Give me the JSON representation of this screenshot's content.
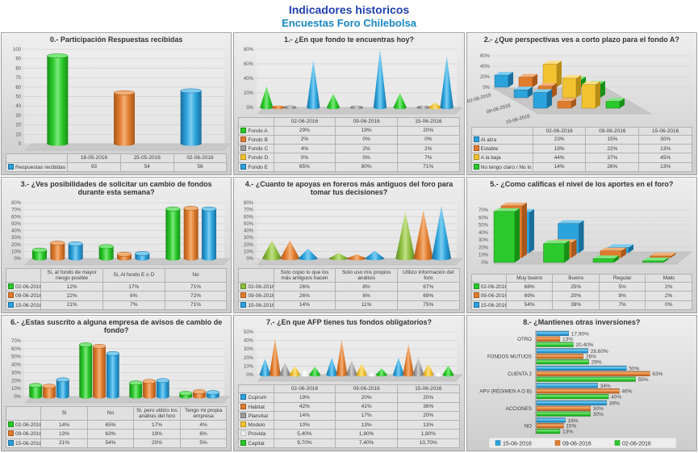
{
  "header": {
    "title1": "Indicadores historicos",
    "title2": "Encuestas Foro Chilebolsa"
  },
  "colors": {
    "green": {
      "base": "#2bc92b",
      "light": "#7ce87c",
      "dark": "#179117",
      "darker": "#0e6e0e"
    },
    "orange": {
      "base": "#e07c2e",
      "light": "#f3b077",
      "dark": "#a8581c",
      "darker": "#8a4716"
    },
    "blue": {
      "base": "#2ba3dc",
      "light": "#7ecdf0",
      "dark": "#1a6f9d",
      "darker": "#145a81"
    },
    "yellow": {
      "base": "#f2c230",
      "light": "#fadf85",
      "dark": "#b98e18",
      "darker": "#977311"
    },
    "gray": {
      "base": "#9c9c9c",
      "light": "#d0d0d0",
      "dark": "#6e6e6e",
      "darker": "#595959"
    },
    "olive": {
      "base": "#8fbe3f",
      "light": "#c2e187",
      "dark": "#5f8a24",
      "darker": "#4c701c"
    },
    "white": {
      "base": "#efefef",
      "light": "#ffffff",
      "dark": "#bdbdbd",
      "darker": "#a0a0a0"
    },
    "title1": "#1f3fae",
    "title2": "#1886c3"
  },
  "chart_data": [
    {
      "type": "bar",
      "style": "cylinder",
      "table": true,
      "title": "0.- Participación Respuestas recibidas",
      "categories": [
        "18-05-2016",
        "25-05-2016",
        "02-06-2016"
      ],
      "series": [
        {
          "name": "Respuestas recibidas",
          "color": "blue",
          "point_colors": [
            "green",
            "orange",
            "blue"
          ],
          "values": [
            93,
            54,
            56
          ],
          "labels": [
            "93",
            "54",
            "56"
          ]
        }
      ],
      "ylim": [
        0,
        100
      ],
      "ystep": 10,
      "yformat": "num"
    },
    {
      "type": "bar",
      "style": "cone",
      "table": true,
      "title": "1.- ¿En que fondo te encuentras hoy?",
      "categories": [
        "02-06-2016",
        "09-06-2016",
        "15-06-2016"
      ],
      "series": [
        {
          "name": "Fondo A",
          "color": "green",
          "values": [
            29,
            19,
            20
          ],
          "labels": [
            "29%",
            "19%",
            "20%"
          ]
        },
        {
          "name": "Fondo B",
          "color": "orange",
          "values": [
            2,
            0,
            0
          ],
          "labels": [
            "2%",
            "0%",
            "0%"
          ]
        },
        {
          "name": "Fondo C",
          "color": "gray",
          "values": [
            4,
            2,
            2
          ],
          "labels": [
            "4%",
            "2%",
            "2%"
          ]
        },
        {
          "name": "Fondo D",
          "color": "yellow",
          "values": [
            0,
            0,
            7
          ],
          "labels": [
            "0%",
            "0%",
            "7%"
          ]
        },
        {
          "name": "Fondo E",
          "color": "blue",
          "values": [
            65,
            80,
            71
          ],
          "labels": [
            "65%",
            "80%",
            "71%"
          ]
        }
      ],
      "ylim": [
        0,
        80
      ],
      "ystep": 20,
      "yformat": "pct"
    },
    {
      "type": "bar",
      "style": "box3d-cat",
      "table": true,
      "title": "2.- ¿Que perspectivas ves a corto plazo para el fondo A?",
      "categories": [
        "02-06-2016",
        "09-06-2016",
        "15-06-2016"
      ],
      "series": [
        {
          "name": "Al alza",
          "color": "blue",
          "values": [
            23,
            15,
            30
          ],
          "labels": [
            "23%",
            "15%",
            "30%"
          ]
        },
        {
          "name": "Estable",
          "color": "orange",
          "values": [
            19,
            22,
            13
          ],
          "labels": [
            "19%",
            "22%",
            "13%"
          ]
        },
        {
          "name": "A la baja",
          "color": "yellow",
          "values": [
            44,
            37,
            45
          ],
          "labels": [
            "44%",
            "37%",
            "45%"
          ]
        },
        {
          "name": "No tengo claro / No lo se",
          "color": "green",
          "values": [
            14,
            26,
            13
          ],
          "labels": [
            "14%",
            "26%",
            "13%"
          ]
        }
      ],
      "ylim": [
        0,
        60
      ],
      "ystep": 20,
      "yformat": "pct"
    },
    {
      "type": "bar",
      "style": "cylinder",
      "table": true,
      "title": "3.- ¿Ves posibilidades de solicitar un cambio de fondos durante esta semana?",
      "categories": [
        "Si, al fondo de mayor riesgo posible",
        "Si, Al fondo E o D",
        "No"
      ],
      "series": [
        {
          "name": "02-06-2016",
          "color": "green",
          "values": [
            12,
            17,
            71
          ],
          "labels": [
            "12%",
            "17%",
            "71%"
          ]
        },
        {
          "name": "09-06-2016",
          "color": "orange",
          "values": [
            22,
            6,
            72
          ],
          "labels": [
            "22%",
            "6%",
            "72%"
          ]
        },
        {
          "name": "15-06-2016",
          "color": "blue",
          "values": [
            21,
            7,
            71
          ],
          "labels": [
            "21%",
            "7%",
            "71%"
          ]
        }
      ],
      "ylim": [
        0,
        80
      ],
      "ystep": 10,
      "yformat": "pct"
    },
    {
      "type": "bar",
      "style": "cone",
      "table": true,
      "title": "4.- ¿Cuanto te apoyas en foreros más antiguos del foro para tomar tus decisiones?",
      "categories": [
        "Solo copio lo que los más antiguos hacen",
        "Solo uso mis propios análisis",
        "Utilizo información del foro"
      ],
      "series": [
        {
          "name": "02-06-2016",
          "color": "olive",
          "values": [
            26,
            8,
            67
          ],
          "labels": [
            "26%",
            "8%",
            "67%"
          ]
        },
        {
          "name": "09-06-2016",
          "color": "orange",
          "values": [
            26,
            6,
            69
          ],
          "labels": [
            "26%",
            "6%",
            "69%"
          ]
        },
        {
          "name": "15-06-2016",
          "color": "blue",
          "values": [
            14,
            11,
            75
          ],
          "labels": [
            "14%",
            "11%",
            "75%"
          ]
        }
      ],
      "ylim": [
        0,
        80
      ],
      "ystep": 10,
      "yformat": "pct"
    },
    {
      "type": "bar",
      "style": "box3d-ser",
      "table": true,
      "title": "5.- ¿Como calificas el nivel de los aportes en el foro?",
      "categories": [
        "Muy bueno",
        "Bueno",
        "Regular",
        "Malo"
      ],
      "series": [
        {
          "name": "02-06-2016",
          "color": "green",
          "values": [
            68,
            25,
            5,
            2
          ],
          "labels": [
            "68%",
            "25%",
            "5%",
            "2%"
          ]
        },
        {
          "name": "09-06-2016",
          "color": "orange",
          "values": [
            69,
            20,
            9,
            2
          ],
          "labels": [
            "69%",
            "20%",
            "9%",
            "2%"
          ]
        },
        {
          "name": "15-06-2016",
          "color": "blue",
          "values": [
            54,
            39,
            7,
            0
          ],
          "labels": [
            "54%",
            "39%",
            "7%",
            "0%"
          ]
        }
      ],
      "ylim": [
        0,
        70
      ],
      "ystep": 10,
      "yformat": "pct"
    },
    {
      "type": "bar",
      "style": "cylinder",
      "table": true,
      "title": "6.- ¿Estas suscrito a alguna empresa de avisos de cambio de fondo?",
      "categories": [
        "Si",
        "No",
        "Si, pero utilizo los análisis del foro",
        "Tengo mi propia empresa"
      ],
      "series": [
        {
          "name": "02-06-2016",
          "color": "green",
          "values": [
            14,
            65,
            17,
            4
          ],
          "labels": [
            "14%",
            "65%",
            "17%",
            "4%"
          ]
        },
        {
          "name": "09-06-2016",
          "color": "orange",
          "values": [
            13,
            63,
            19,
            6
          ],
          "labels": [
            "13%",
            "63%",
            "19%",
            "6%"
          ]
        },
        {
          "name": "15-06-2016",
          "color": "blue",
          "values": [
            21,
            54,
            20,
            5
          ],
          "labels": [
            "21%",
            "54%",
            "20%",
            "5%"
          ]
        }
      ],
      "ylim": [
        0,
        70
      ],
      "ystep": 10,
      "yformat": "pct"
    },
    {
      "type": "bar",
      "style": "cone",
      "table": true,
      "title": "7.- ¿En que AFP tienes tus fondos obligatorios?",
      "categories": [
        "02-06-2016",
        "09-06-2016",
        "15-06-2016"
      ],
      "series": [
        {
          "name": "Cuprum",
          "color": "blue",
          "values": [
            19,
            20,
            20
          ],
          "labels": [
            "19%",
            "20%",
            "20%"
          ]
        },
        {
          "name": "Habitat",
          "color": "orange",
          "values": [
            42,
            41,
            36
          ],
          "labels": [
            "42%",
            "41%",
            "36%"
          ]
        },
        {
          "name": "Planvital",
          "color": "gray",
          "values": [
            14,
            17,
            20
          ],
          "labels": [
            "14%",
            "17%",
            "20%"
          ]
        },
        {
          "name": "Modelo",
          "color": "yellow",
          "values": [
            10,
            13,
            13
          ],
          "labels": [
            "10%",
            "13%",
            "13%"
          ]
        },
        {
          "name": "Provida",
          "color": "white",
          "values": [
            5.4,
            1.9,
            1.8
          ],
          "labels": [
            "5,40%",
            "1,90%",
            "1,80%"
          ]
        },
        {
          "name": "Capital",
          "color": "green",
          "values": [
            9.7,
            7.4,
            10.7
          ],
          "labels": [
            "9,70%",
            "7,40%",
            "10,70%"
          ]
        }
      ],
      "ylim": [
        0,
        50
      ],
      "ystep": 10,
      "yformat": "pct"
    },
    {
      "type": "bar",
      "style": "hbar",
      "table": false,
      "title": "8.- ¿Mantienes otras inversiones?",
      "categories": [
        "OTRO",
        "FONDOS MUTUOS",
        "CUENTA 2",
        "APV (RÉGIMEN A O B)",
        "ACCIONES",
        "NO"
      ],
      "series": [
        {
          "name": "15-06-2016",
          "color": "blue",
          "values": [
            17.9,
            28.6,
            50,
            34,
            39,
            16
          ],
          "labels": [
            "17,90%",
            "28,60%",
            "50%",
            "34%",
            "39%",
            "16%"
          ]
        },
        {
          "name": "09-06-2016",
          "color": "orange",
          "values": [
            13,
            26,
            63,
            46,
            30,
            15
          ],
          "labels": [
            "13%",
            "26%",
            "63%",
            "46%",
            "30%",
            "15%"
          ]
        },
        {
          "name": "02-06-2016",
          "color": "green",
          "values": [
            20.4,
            29,
            55,
            40,
            30,
            13
          ],
          "labels": [
            "20,40%",
            "29%",
            "55%",
            "40%",
            "30%",
            "13%"
          ]
        }
      ],
      "xlim": [
        0,
        70
      ],
      "legend_position": "bottom"
    }
  ]
}
